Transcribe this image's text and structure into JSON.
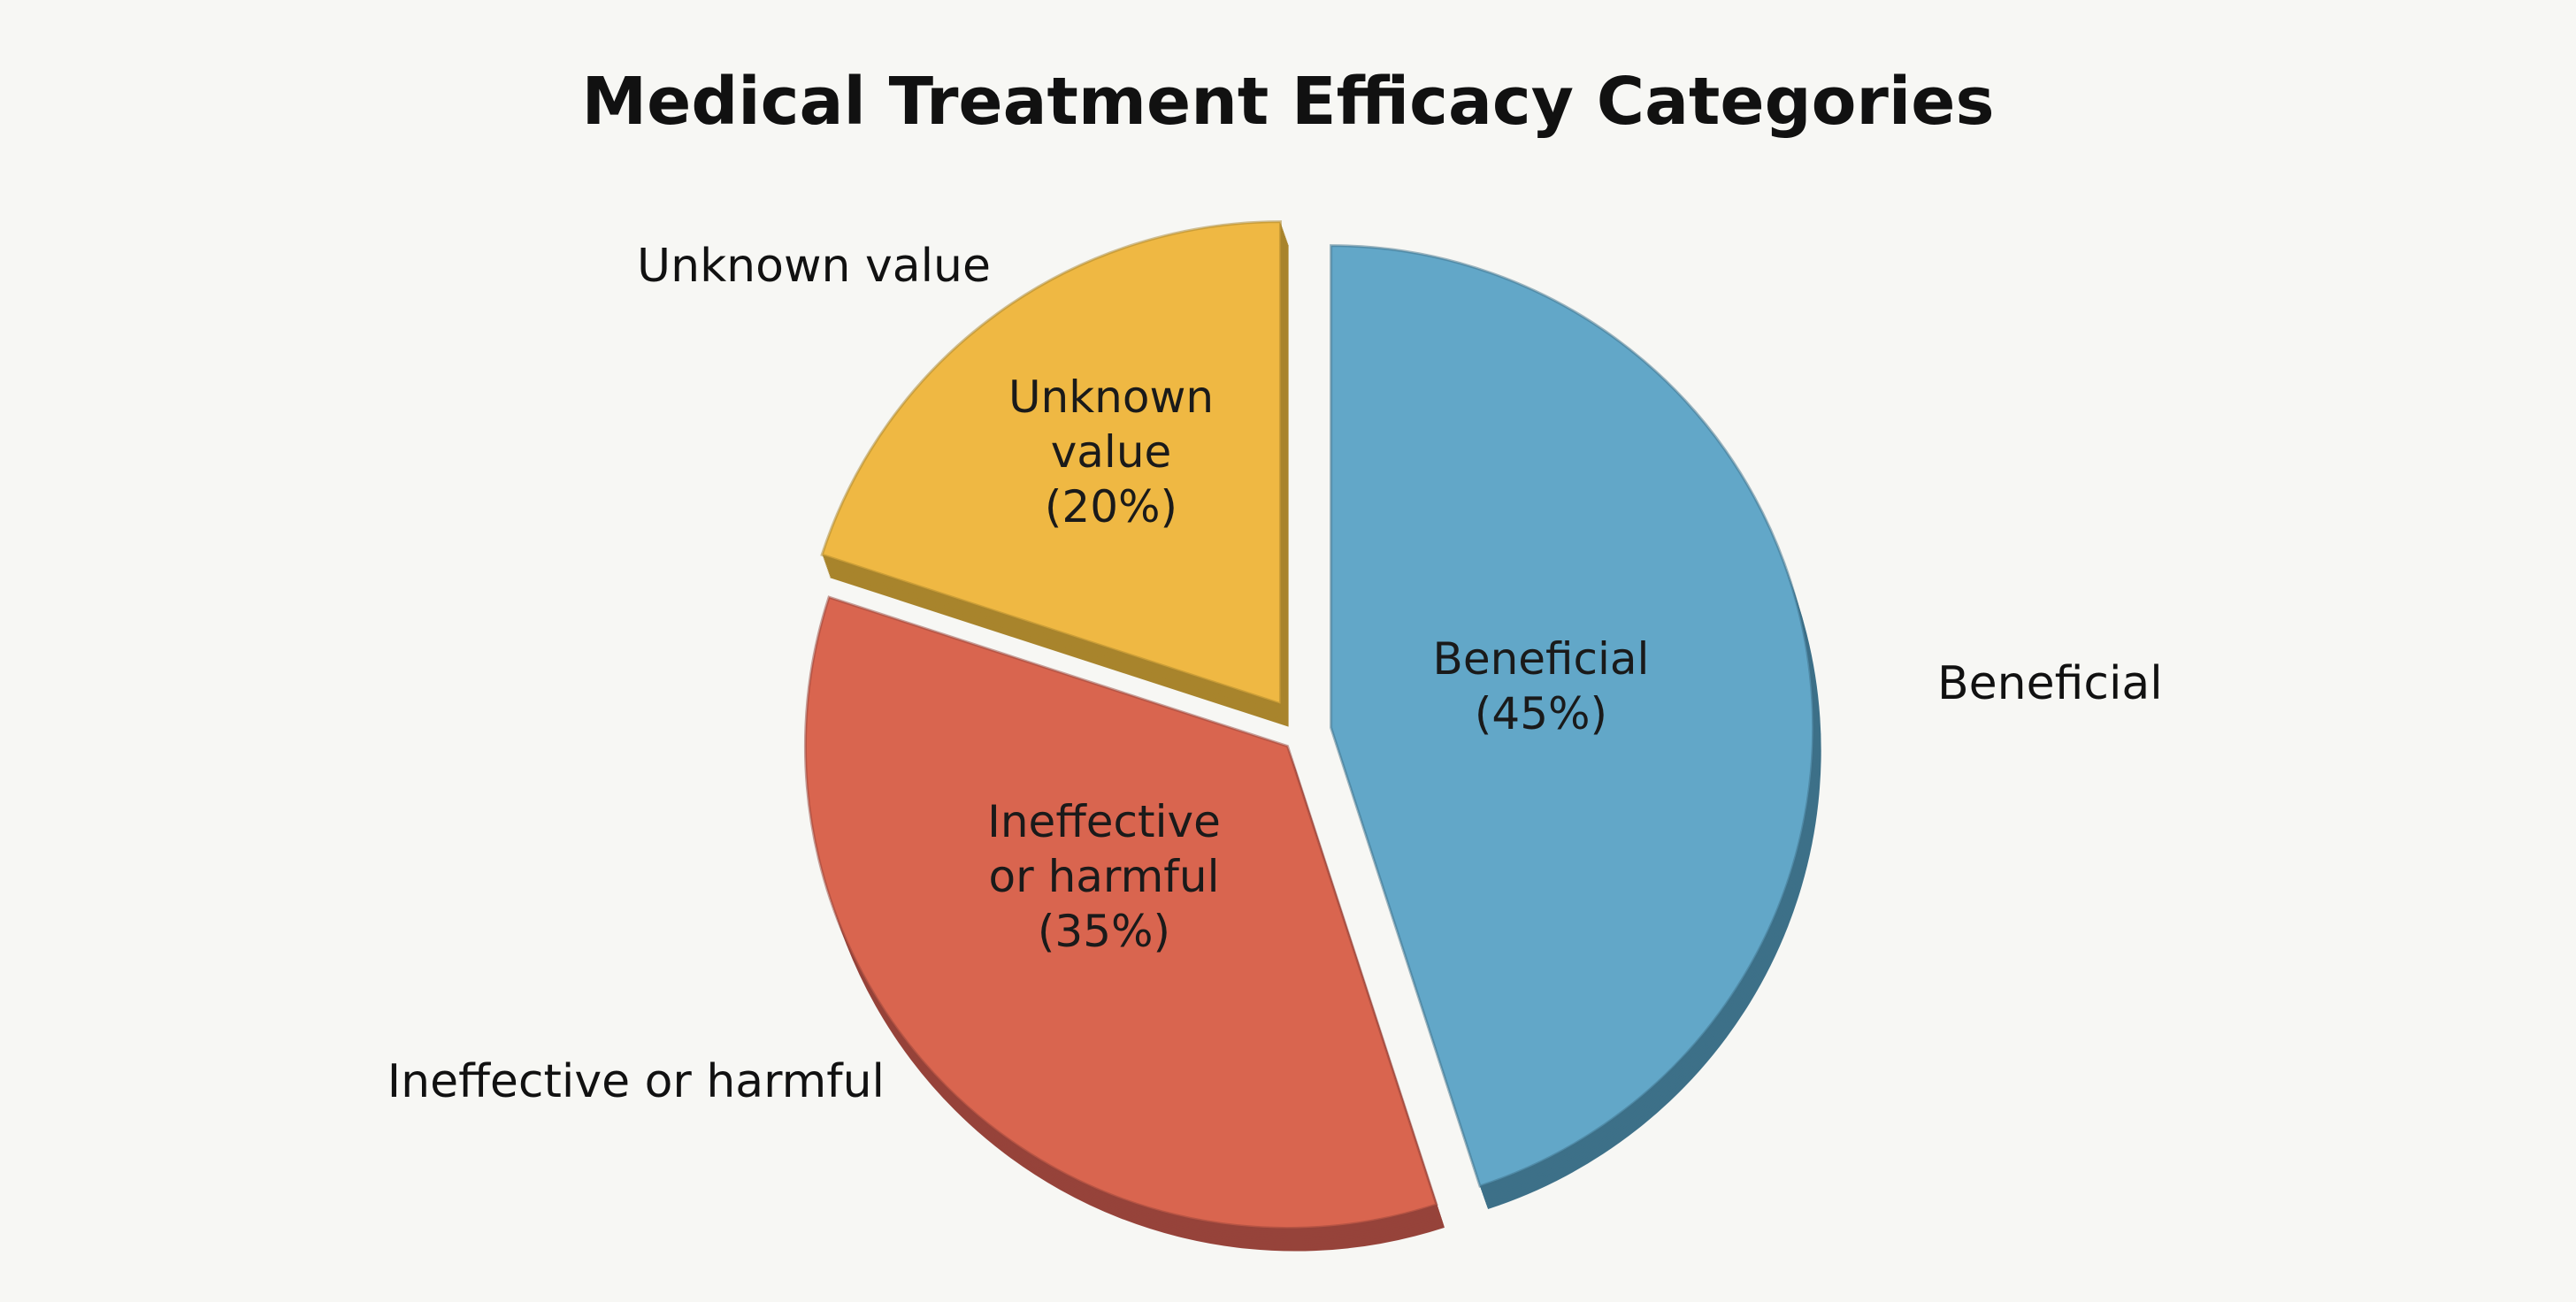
{
  "chart_data": {
    "type": "pie",
    "title": "Medical Treatment Efficacy Categories",
    "slices": [
      {
        "label": "Beneficial",
        "value": 45,
        "inner_label": [
          "Beneficial",
          "(45%)"
        ],
        "color": "#62a7c8",
        "depth_color": "#3d7088"
      },
      {
        "label": "Ineffective or harmful",
        "value": 35,
        "inner_label": [
          "Ineffective",
          "or harmful",
          "(35%)"
        ],
        "color": "#d9654f",
        "depth_color": "#96433a"
      },
      {
        "label": "Unknown value",
        "value": 20,
        "inner_label": [
          "Unknown",
          "value",
          "(20%)"
        ],
        "color": "#efb843",
        "depth_color": "#a8842c"
      }
    ],
    "start": "12 o'clock",
    "direction": "clockwise",
    "exploded": true,
    "style": "3d"
  }
}
